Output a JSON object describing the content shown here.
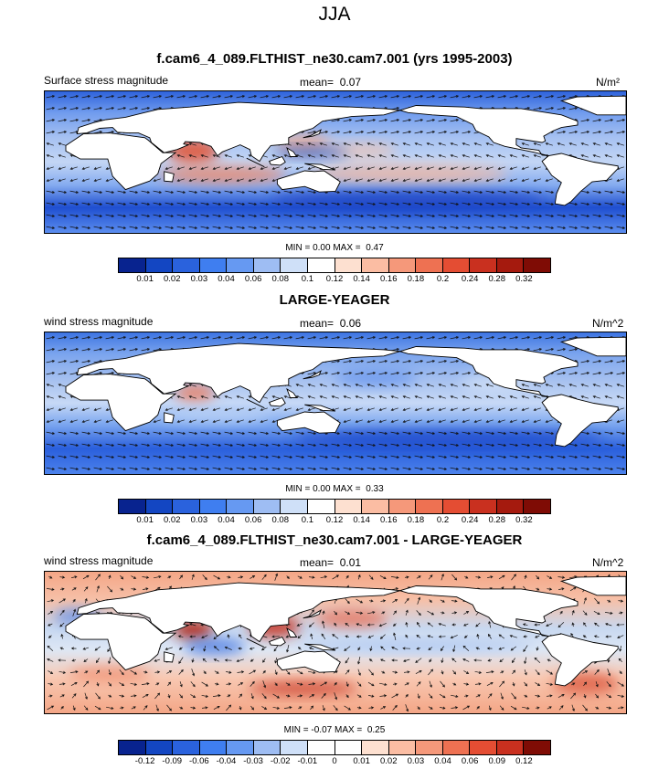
{
  "season": "JJA",
  "panels": [
    {
      "title": "f.cam6_4_089.FLTHIST_ne30.cam7.001 (yrs 1995-2003)",
      "left_label": "Surface stress magnitude",
      "mean_label": "mean=",
      "mean_value": "0.07",
      "units": "N/m²",
      "min_label": "MIN =",
      "min_value": "0.00",
      "max_label": "MAX =",
      "max_value": "0.47",
      "levels": [
        "0.01",
        "0.02",
        "0.03",
        "0.04",
        "0.06",
        "0.08",
        "0.1",
        "0.12",
        "0.14",
        "0.16",
        "0.18",
        "0.2",
        "0.24",
        "0.28",
        "0.32"
      ],
      "colors": [
        "#08238f",
        "#1346c2",
        "#2a62dd",
        "#3f7ef0",
        "#6699f2",
        "#9ebdf3",
        "#cfe0f8",
        "#ffffff",
        "#fde0d0",
        "#fbbda3",
        "#f5987a",
        "#ee7152",
        "#e44d33",
        "#c9301f",
        "#a51a0e",
        "#7f0c05"
      ]
    },
    {
      "title": "LARGE-YEAGER",
      "left_label": "wind stress magnitude",
      "mean_label": "mean=",
      "mean_value": "0.06",
      "units": "N/m^2",
      "min_label": "MIN =",
      "min_value": "0.00",
      "max_label": "MAX =",
      "max_value": "0.33",
      "levels": [
        "0.01",
        "0.02",
        "0.03",
        "0.04",
        "0.06",
        "0.08",
        "0.1",
        "0.12",
        "0.14",
        "0.16",
        "0.18",
        "0.2",
        "0.24",
        "0.28",
        "0.32"
      ],
      "colors": [
        "#08238f",
        "#1346c2",
        "#2a62dd",
        "#3f7ef0",
        "#6699f2",
        "#9ebdf3",
        "#cfe0f8",
        "#ffffff",
        "#fde0d0",
        "#fbbda3",
        "#f5987a",
        "#ee7152",
        "#e44d33",
        "#c9301f",
        "#a51a0e",
        "#7f0c05"
      ]
    },
    {
      "title": "f.cam6_4_089.FLTHIST_ne30.cam7.001 - LARGE-YEAGER",
      "left_label": "wind stress magnitude",
      "mean_label": "mean=",
      "mean_value": "0.01",
      "units": "N/m^2",
      "min_label": "MIN =",
      "min_value": "-0.07",
      "max_label": "MAX =",
      "max_value": "0.25",
      "levels": [
        "-0.12",
        "-0.09",
        "-0.06",
        "-0.04",
        "-0.03",
        "-0.02",
        "-0.01",
        "0",
        "0.01",
        "0.02",
        "0.03",
        "0.04",
        "0.06",
        "0.09",
        "0.12"
      ],
      "colors": [
        "#08238f",
        "#1346c2",
        "#2a62dd",
        "#3f7ef0",
        "#6699f2",
        "#9ebdf3",
        "#cfe0f8",
        "#ffffff",
        "#ffffff",
        "#fde0d0",
        "#fbbda3",
        "#f5987a",
        "#ee7152",
        "#e44d33",
        "#c9301f",
        "#7f0c05"
      ]
    }
  ]
}
